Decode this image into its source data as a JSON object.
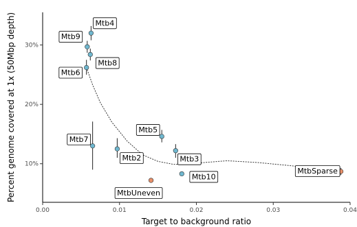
{
  "chart_data": {
    "type": "scatter",
    "xlabel": "Target to background ratio",
    "ylabel": "Percent genome covered at 1x (50Mbp depth)",
    "xlim": [
      0,
      0.04
    ],
    "ylim": [
      0.035,
      0.355
    ],
    "x_ticks": [
      {
        "value": 0.0,
        "label": "0.00"
      },
      {
        "value": 0.01,
        "label": "0.01"
      },
      {
        "value": 0.02,
        "label": "0.02"
      },
      {
        "value": 0.03,
        "label": "0.03"
      },
      {
        "value": 0.04,
        "label": "0.04"
      }
    ],
    "y_ticks": [
      {
        "value": 0.1,
        "label": "10%"
      },
      {
        "value": 0.2,
        "label": "20%"
      },
      {
        "value": 0.3,
        "label": "30%"
      }
    ],
    "grid": false,
    "colors": {
      "main": "#6fb7cf",
      "other": "#e8906a"
    },
    "points": [
      {
        "label": "Mtb4",
        "x": 0.0063,
        "y": 0.32,
        "err_y": [
          0.308,
          0.332
        ],
        "group": "main"
      },
      {
        "label": "Mtb9",
        "x": 0.0058,
        "y": 0.297,
        "err_y": [
          0.287,
          0.307
        ],
        "group": "main"
      },
      {
        "label": "Mtb8",
        "x": 0.0062,
        "y": 0.284,
        "err_y": [
          0.274,
          0.294
        ],
        "group": "main"
      },
      {
        "label": "Mtb6",
        "x": 0.0057,
        "y": 0.262,
        "err_y": [
          0.25,
          0.275
        ],
        "group": "main"
      },
      {
        "label": "Mtb7",
        "x": 0.0065,
        "y": 0.13,
        "err_y": [
          0.09,
          0.171
        ],
        "group": "main"
      },
      {
        "label": "Mtb2",
        "x": 0.0097,
        "y": 0.125,
        "err_y": [
          0.11,
          0.143
        ],
        "group": "main"
      },
      {
        "label": "Mtb5",
        "x": 0.0155,
        "y": 0.146,
        "err_y": [
          0.136,
          0.157
        ],
        "group": "main"
      },
      {
        "label": "Mtb3",
        "x": 0.0173,
        "y": 0.122,
        "err_y": [
          0.11,
          0.133
        ],
        "group": "main"
      },
      {
        "label": "Mtb10",
        "x": 0.0181,
        "y": 0.083,
        "err_y": [
          0.081,
          0.085
        ],
        "group": "main"
      },
      {
        "label": "MtbUneven",
        "x": 0.0141,
        "y": 0.072,
        "err_y": [
          0.07,
          0.074
        ],
        "group": "other"
      },
      {
        "label": "MtbSparse",
        "x": 0.0388,
        "y": 0.087,
        "err_y": [
          0.081,
          0.093
        ],
        "group": "other"
      }
    ],
    "trend": {
      "style": "dotted",
      "x": [
        0.0057,
        0.0065,
        0.0075,
        0.009,
        0.011,
        0.013,
        0.015,
        0.017,
        0.019,
        0.021,
        0.024,
        0.028,
        0.032,
        0.036,
        0.0388
      ],
      "y": [
        0.262,
        0.233,
        0.203,
        0.17,
        0.138,
        0.115,
        0.104,
        0.099,
        0.099,
        0.102,
        0.105,
        0.102,
        0.097,
        0.092,
        0.087
      ]
    }
  }
}
